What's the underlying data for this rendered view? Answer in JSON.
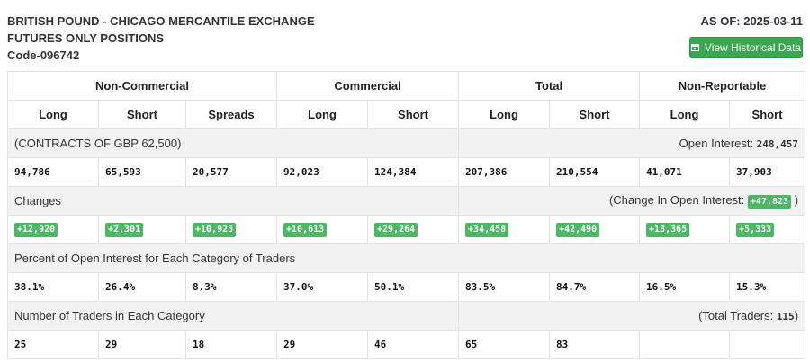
{
  "header": {
    "title_line1": "BRITISH POUND - CHICAGO MERCANTILE EXCHANGE",
    "title_line2": "FUTURES ONLY POSITIONS",
    "code": "Code-096742",
    "as_of": "AS OF: 2025-03-11",
    "history_button": "View Historical Data",
    "history_icon": "calendar-icon"
  },
  "table": {
    "groups": [
      "Non-Commercial",
      "Commercial",
      "Total",
      "Non-Reportable"
    ],
    "columns": [
      "Long",
      "Short",
      "Spreads",
      "Long",
      "Short",
      "Long",
      "Short",
      "Long",
      "Short"
    ],
    "contracts_label": "(CONTRACTS OF GBP 62,500)",
    "open_interest_label": "Open Interest:",
    "open_interest_value": "248,457",
    "positions": [
      "94,786",
      "65,593",
      "20,577",
      "92,023",
      "124,384",
      "207,386",
      "210,554",
      "41,071",
      "37,903"
    ],
    "changes_label": "Changes",
    "change_oi_label": "(Change In Open Interest:",
    "change_oi_value": "+47,823",
    "change_oi_close": ")",
    "changes": [
      "+12,920",
      "+2,301",
      "+10,925",
      "+10,613",
      "+29,264",
      "+34,458",
      "+42,490",
      "+13,365",
      "+5,333"
    ],
    "percent_label": "Percent of Open Interest for Each Category of Traders",
    "percents": [
      "38.1%",
      "26.4%",
      "8.3%",
      "37.0%",
      "50.1%",
      "83.5%",
      "84.7%",
      "16.5%",
      "15.3%"
    ],
    "traders_label": "Number of Traders in Each Category",
    "total_traders_label": "(Total Traders:",
    "total_traders_value": "115",
    "total_traders_close": ")",
    "traders": [
      "25",
      "29",
      "18",
      "29",
      "46",
      "65",
      "83",
      "",
      ""
    ]
  },
  "colors": {
    "accent_green": "#3aa751",
    "badge_green": "#4cb865",
    "section_bg": "#f2f2f2"
  }
}
